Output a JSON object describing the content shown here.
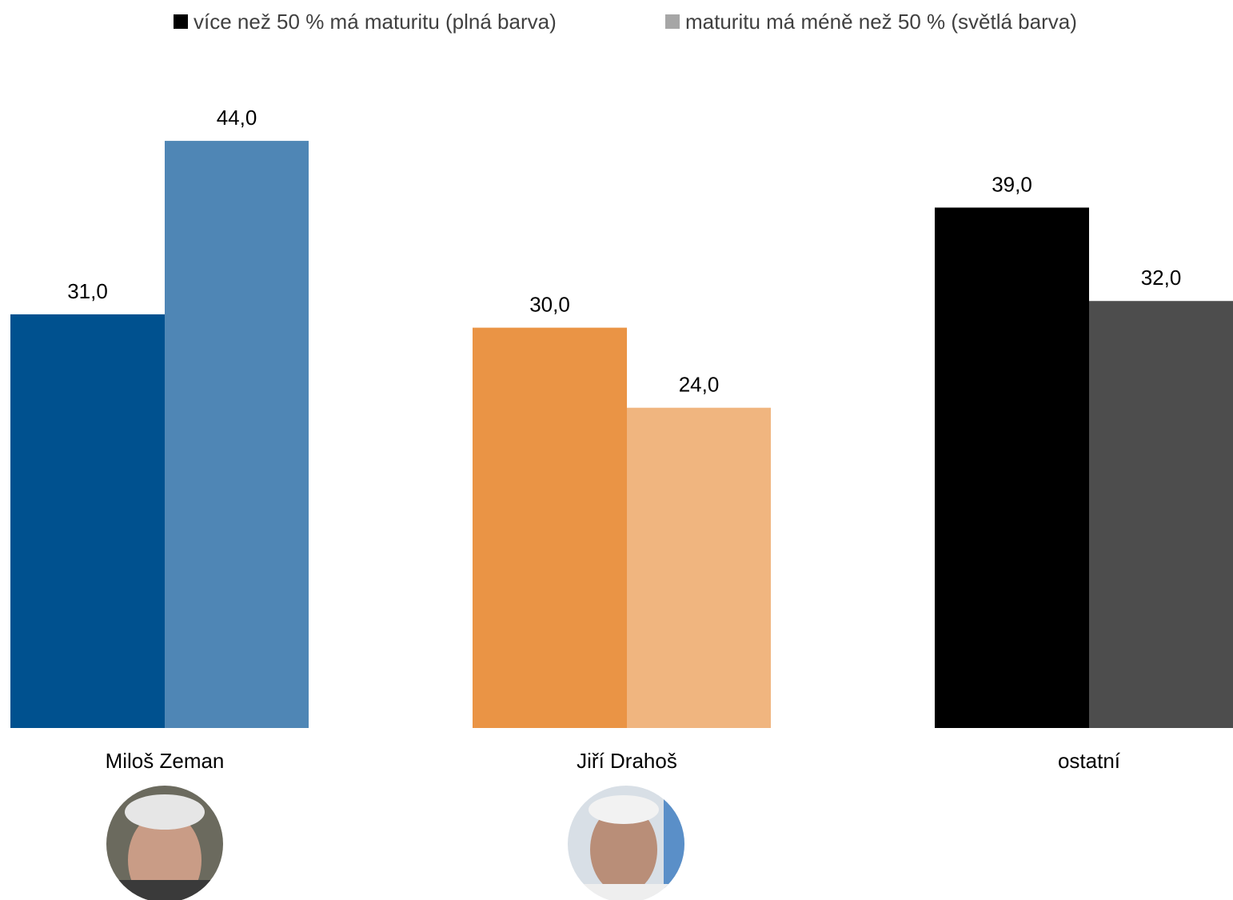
{
  "chart_data": {
    "type": "bar",
    "categories": [
      "Miloš Zeman",
      "Jiří Drahoš",
      "ostatní"
    ],
    "series": [
      {
        "name": "více než 50 % má maturitu (plná barva)",
        "color": "#000000",
        "colors": [
          "#00518f",
          "#ea9445",
          "#000000"
        ],
        "values": [
          31,
          30,
          39
        ],
        "value_labels": [
          "31,0",
          "30,0",
          "39,0"
        ]
      },
      {
        "name": "maturitu má méně než 50 % (světlá barva)",
        "color": "#a6a6a6",
        "colors": [
          "#4f86b5",
          "#f0b57f",
          "#4d4d4d"
        ],
        "values": [
          44,
          24,
          32
        ],
        "value_labels": [
          "44,0",
          "24,0",
          "32,0"
        ]
      }
    ],
    "ylim": [
      0,
      45
    ],
    "legend": "top"
  }
}
